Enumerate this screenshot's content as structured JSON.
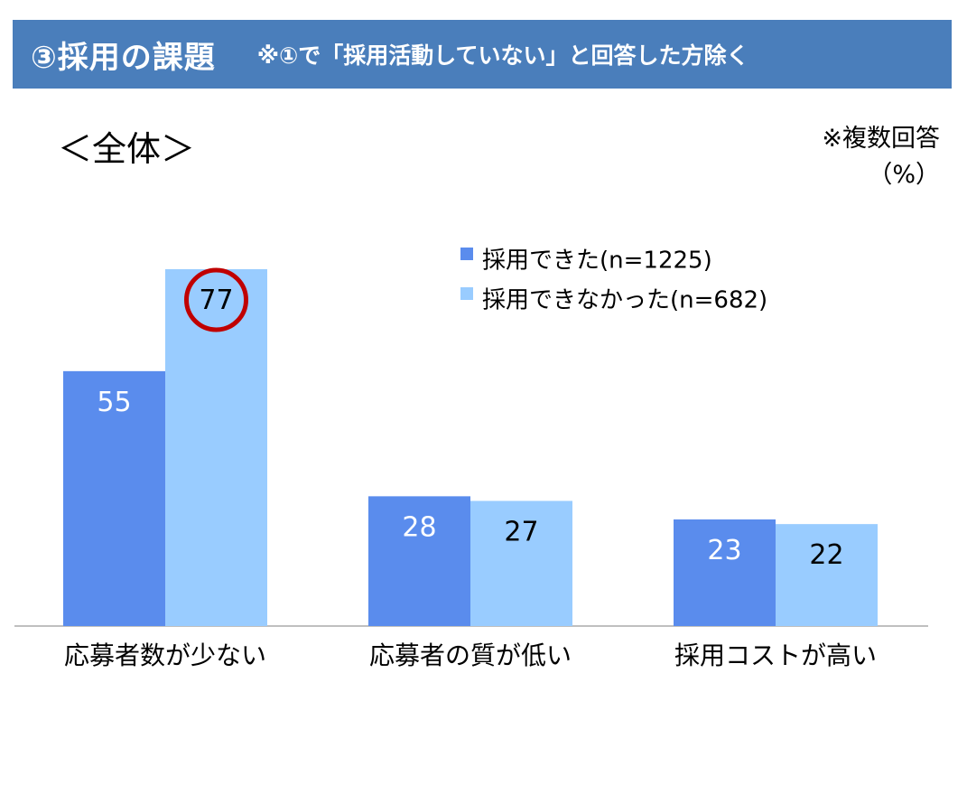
{
  "header": {
    "title": "③採用の課題",
    "note": "※①で「採用活動していない」と回答した方除く"
  },
  "subtitle": "＜全体＞",
  "notes": {
    "multiple_answers": "※複数回答",
    "unit": "（%）"
  },
  "colors": {
    "header_bg": "#4a7ebb",
    "series1": "#5a8ced",
    "series2": "#99ccff",
    "highlight_circle": "#c00000"
  },
  "chart_data": {
    "type": "bar",
    "categories": [
      "応募者数が少ない",
      "応募者の質が低い",
      "採用コストが高い"
    ],
    "series": [
      {
        "name": "採用できた(n=1225)",
        "values": [
          55,
          28,
          23
        ]
      },
      {
        "name": "採用できなかった(n=682)",
        "values": [
          77,
          27,
          22
        ]
      }
    ],
    "legend": "top-right",
    "grid": false,
    "highlight": {
      "series": 1,
      "category": 0
    }
  }
}
